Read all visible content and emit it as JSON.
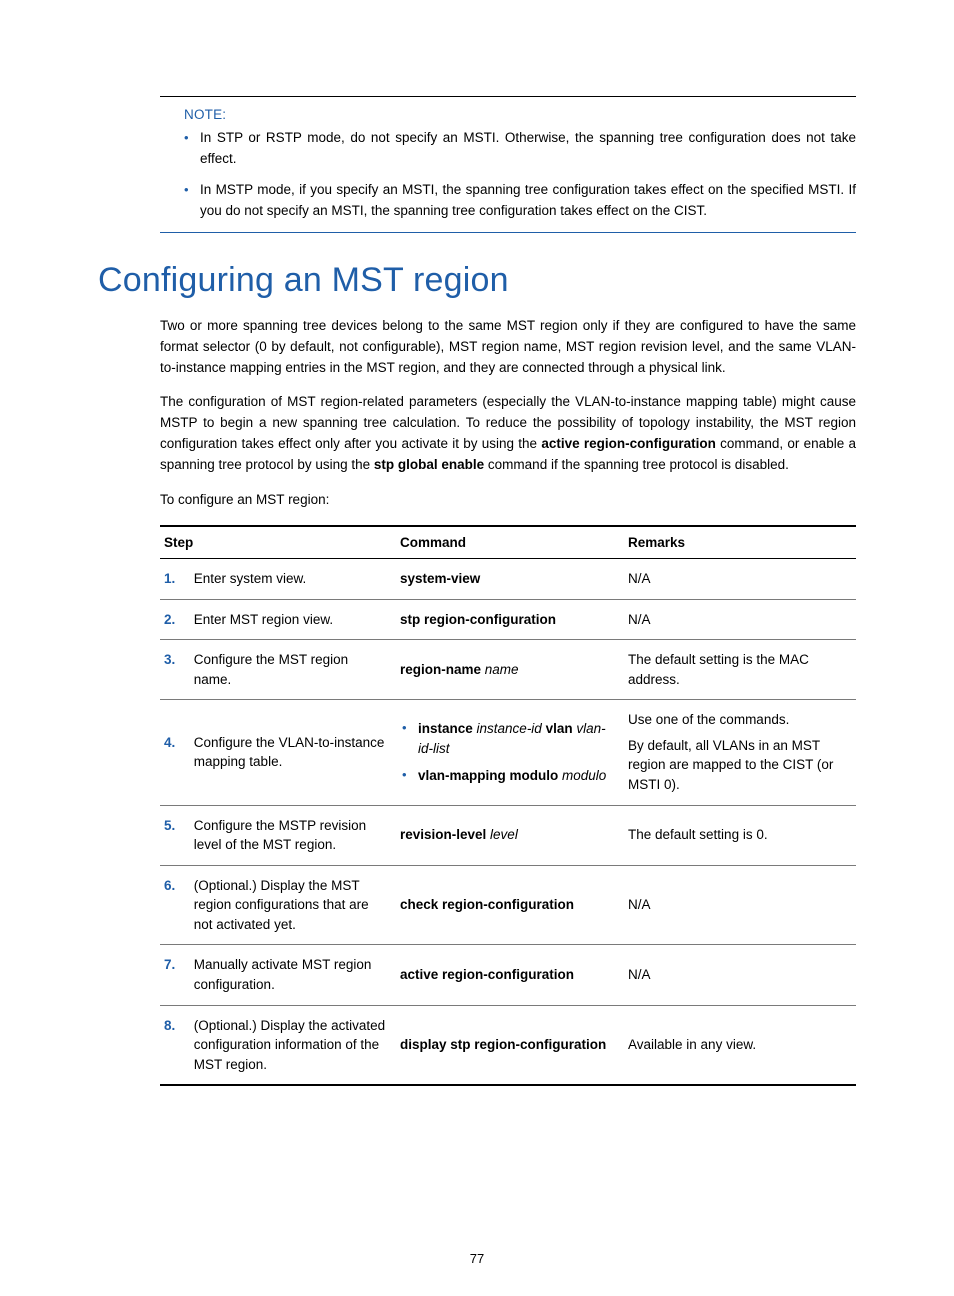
{
  "colors": {
    "accent": "#1f5ea8",
    "text": "#000000",
    "rule": "#7a7a7a",
    "background": "#ffffff"
  },
  "note": {
    "title": "NOTE:",
    "bullets": [
      "In STP or RSTP mode, do not specify an MSTI. Otherwise, the spanning tree configuration does not take effect.",
      "In MSTP mode, if you specify an MSTI, the spanning tree configuration takes effect on the specified MSTI. If you do not specify an MSTI, the spanning tree configuration takes effect on the CIST."
    ]
  },
  "heading": "Configuring an MST region",
  "para1_a": "Two or more spanning tree devices belong to the same MST region only if they are configured to have the same format selector (0 by default, not configurable), MST region name, MST region revision level, and the same VLAN-to-instance mapping entries in the MST region, and they are connected through a physical link.",
  "para2_a": "The configuration of MST region-related parameters (especially the VLAN-to-instance mapping table) might cause MSTP to begin a new spanning tree calculation. To reduce the possibility of topology instability, the MST region configuration takes effect only after you activate it by using the ",
  "para2_b": "active region-configuration",
  "para2_c": " command, or enable a spanning tree protocol by using the ",
  "para2_d": "stp global enable",
  "para2_e": " command if the spanning tree protocol is disabled.",
  "para3": "To configure an MST region:",
  "table": {
    "headers": {
      "step": "Step",
      "command": "Command",
      "remarks": "Remarks"
    },
    "rows": [
      {
        "num": "1.",
        "step": "Enter system view.",
        "cmd_bold": "system-view",
        "remarks": "N/A"
      },
      {
        "num": "2.",
        "step": "Enter MST region view.",
        "cmd_bold": "stp region-configuration",
        "remarks": "N/A"
      },
      {
        "num": "3.",
        "step": "Configure the MST region name.",
        "cmd_bold": "region-name",
        "cmd_italic": " name",
        "remarks": "The default setting is the MAC address."
      },
      {
        "num": "4.",
        "step": "Configure the VLAN-to-instance mapping table.",
        "cmd_bullets": [
          {
            "b1": "instance",
            "i1": " instance-id ",
            "b2": "vlan",
            "i2": " vlan-id-list"
          },
          {
            "b1": "vlan-mapping modulo",
            "i1": " modulo"
          }
        ],
        "remarks_multi": [
          "Use one of the commands.",
          "By default, all VLANs in an MST region are mapped to the CIST (or MSTI 0)."
        ]
      },
      {
        "num": "5.",
        "step": "Configure the MSTP revision level of the MST region.",
        "cmd_bold": "revision-level",
        "cmd_italic": " level",
        "remarks": "The default setting is 0."
      },
      {
        "num": "6.",
        "step": "(Optional.) Display the MST region configurations that are not activated yet.",
        "cmd_bold": "check region-configuration",
        "remarks": "N/A"
      },
      {
        "num": "7.",
        "step": "Manually activate MST region configuration.",
        "cmd_bold": "active region-configuration",
        "remarks": "N/A"
      },
      {
        "num": "8.",
        "step": "(Optional.) Display the activated configuration information of the MST region.",
        "cmd_bold": "display stp region-configuration",
        "remarks": "Available in any view."
      }
    ]
  },
  "page_number": "77"
}
